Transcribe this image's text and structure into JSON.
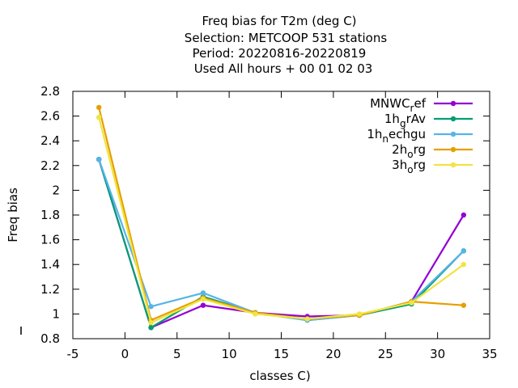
{
  "chart_data": {
    "type": "line",
    "title_lines": [
      "Freq bias  for T2m (deg C)",
      "Selection: METCOOP    531 stations",
      "Period: 20220816-20220819",
      "Used  All hours  + 00 01 02 03"
    ],
    "xlabel": "classes C)",
    "ylabel": "Freq bias",
    "xlim": [
      -5,
      35
    ],
    "ylim": [
      0.8,
      2.8
    ],
    "xticks": [
      -5,
      0,
      5,
      10,
      15,
      20,
      25,
      30,
      35
    ],
    "yticks": [
      0.8,
      1,
      1.2,
      1.4,
      1.6,
      1.8,
      2,
      2.2,
      2.4,
      2.6,
      2.8
    ],
    "ytick_labels": [
      "0.8",
      "1",
      "1.2",
      "1.4",
      "1.6",
      "1.8",
      "2",
      "2.2",
      "2.4",
      "2.6",
      "2.8"
    ],
    "legend_position": "top-right",
    "x": [
      -2.5,
      2.5,
      7.5,
      12.5,
      17.5,
      22.5,
      27.5,
      32.5
    ],
    "series": [
      {
        "name": "MNWC_ref",
        "legend_main": "MNWC",
        "legend_sub": "r",
        "legend_rest": "ef",
        "color": "#9400d3",
        "values": [
          2.25,
          0.89,
          1.07,
          1.01,
          0.98,
          0.99,
          1.1,
          1.8
        ]
      },
      {
        "name": "1h_grAv",
        "legend_main": "1h",
        "legend_sub": "g",
        "legend_rest": "rAv",
        "color": "#009e73",
        "values": [
          2.25,
          0.89,
          1.14,
          1.01,
          0.95,
          0.99,
          1.08,
          1.51
        ]
      },
      {
        "name": "1h_nechgu",
        "legend_main": "1h",
        "legend_sub": "n",
        "legend_rest": "echgu",
        "color": "#56b4e9",
        "values": [
          2.25,
          1.06,
          1.17,
          1.01,
          0.95,
          0.99,
          1.1,
          1.51
        ]
      },
      {
        "name": "2h_org",
        "legend_main": "2h",
        "legend_sub": "o",
        "legend_rest": "rg",
        "color": "#e69f00",
        "values": [
          2.67,
          0.95,
          1.13,
          1.01,
          0.96,
          0.99,
          1.1,
          1.07
        ]
      },
      {
        "name": "3h_org",
        "legend_main": "3h",
        "legend_sub": "o",
        "legend_rest": "rg",
        "color": "#f0e442",
        "values": [
          2.59,
          0.93,
          1.12,
          1.0,
          0.96,
          1.0,
          1.09,
          1.4
        ]
      }
    ]
  }
}
